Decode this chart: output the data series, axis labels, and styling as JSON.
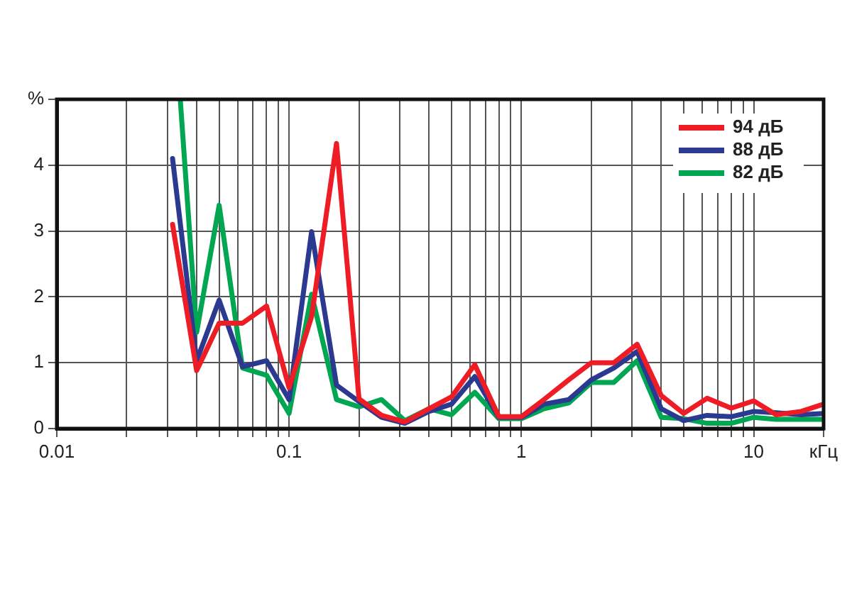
{
  "chart_data": {
    "type": "line",
    "log": "x",
    "grid": true,
    "legend": "top right",
    "marker": "none",
    "line_style": "solid",
    "x": [
      0.0315,
      0.04,
      0.05,
      0.063,
      0.08,
      0.1,
      0.125,
      0.16,
      0.2,
      0.25,
      0.315,
      0.4,
      0.5,
      0.63,
      0.8,
      1,
      1.25,
      1.6,
      2,
      2.5,
      3.15,
      4,
      5,
      6.3,
      8,
      10,
      12.5,
      16,
      20
    ],
    "xlim": [
      0.01,
      20
    ],
    "xticks": [
      0.01,
      {
        "value": 0.02,
        "label": null
      },
      {
        "value": 0.03,
        "label": null
      },
      {
        "value": 0.04,
        "label": null
      },
      {
        "value": 0.05,
        "label": null
      },
      {
        "value": 0.06,
        "label": null
      },
      {
        "value": 0.07,
        "label": null
      },
      {
        "value": 0.08,
        "label": null
      },
      {
        "value": 0.09,
        "label": null
      },
      0.1,
      {
        "value": 0.2,
        "label": null
      },
      {
        "value": 0.3,
        "label": null
      },
      {
        "value": 0.4,
        "label": null
      },
      {
        "value": 0.5,
        "label": null
      },
      {
        "value": 0.6,
        "label": null
      },
      {
        "value": 0.7,
        "label": null
      },
      {
        "value": 0.8,
        "label": null
      },
      {
        "value": 0.9,
        "label": null
      },
      1,
      {
        "value": 2,
        "label": null
      },
      {
        "value": 3,
        "label": null
      },
      {
        "value": 4,
        "label": null
      },
      {
        "value": 5,
        "label": null
      },
      {
        "value": 6,
        "label": null
      },
      {
        "value": 7,
        "label": null
      },
      {
        "value": 8,
        "label": null
      },
      {
        "value": 9,
        "label": null
      },
      10,
      {
        "value": 20,
        "label": "кГц"
      }
    ],
    "ylim": [
      0,
      5
    ],
    "yticks": [
      0,
      1,
      2,
      3,
      4,
      {
        "value": 5,
        "label": "%"
      }
    ],
    "series": [
      {
        "name": "94 дБ",
        "color": "#ee1c25",
        "values": [
          3.1,
          0.88,
          1.6,
          1.6,
          1.86,
          0.62,
          1.7,
          4.33,
          0.45,
          0.2,
          0.1,
          0.3,
          0.48,
          0.97,
          0.18,
          0.18,
          0.44,
          0.74,
          1.0,
          1.0,
          1.28,
          0.5,
          0.23,
          0.46,
          0.31,
          0.42,
          0.21,
          0.26,
          0.37
        ]
      },
      {
        "name": "88 дБ",
        "color": "#2b3990",
        "values": [
          4.1,
          1.03,
          1.95,
          0.94,
          1.03,
          0.44,
          2.99,
          0.66,
          0.41,
          0.17,
          0.08,
          0.26,
          0.37,
          0.79,
          0.17,
          0.17,
          0.37,
          0.44,
          0.74,
          0.92,
          1.17,
          0.3,
          0.12,
          0.2,
          0.18,
          0.26,
          0.24,
          0.21,
          0.23
        ]
      },
      {
        "name": "82 дБ",
        "color": "#00a651",
        "x": [
          0.034,
          0.04,
          0.05,
          0.063,
          0.08,
          0.1,
          0.125,
          0.16,
          0.2,
          0.25,
          0.315,
          0.4,
          0.5,
          0.63,
          0.8,
          1,
          1.25,
          1.6,
          2,
          2.5,
          3.15,
          4,
          5,
          6.3,
          8,
          10,
          12.5,
          16,
          20
        ],
        "values": [
          5,
          1.46,
          3.39,
          0.92,
          0.81,
          0.23,
          2.04,
          0.44,
          0.33,
          0.44,
          0.12,
          0.3,
          0.21,
          0.55,
          0.15,
          0.15,
          0.3,
          0.39,
          0.7,
          0.7,
          1.03,
          0.17,
          0.15,
          0.08,
          0.08,
          0.17,
          0.14,
          0.14,
          0.14
        ]
      }
    ]
  }
}
